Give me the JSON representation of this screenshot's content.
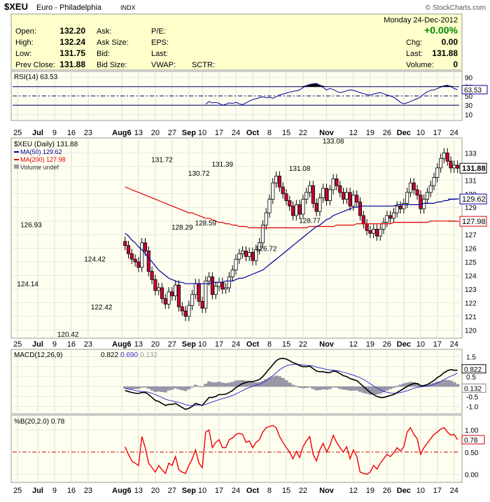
{
  "header": {
    "symbol": "$XEU",
    "name": "Euro - Philadelphia",
    "exchange": "INDX",
    "source": "© StockCharts.com",
    "date": "Monday 24-Dec-2012",
    "change_pct": "+0.00%"
  },
  "quote": {
    "col1": [
      {
        "label": "Open:",
        "value": "132.20"
      },
      {
        "label": "High:",
        "value": "132.24"
      },
      {
        "label": "Low:",
        "value": "131.75"
      },
      {
        "label": "Prev Close:",
        "value": "131.88"
      }
    ],
    "col2": [
      "Ask:",
      "Ask Size:",
      "Bid:",
      "Bid Size:"
    ],
    "col3": [
      "P/E:",
      "EPS:",
      "Last:",
      "VWAP:"
    ],
    "sctr": "SCTR:",
    "col4": [
      {
        "label": "Chg:",
        "value": "0.00"
      },
      {
        "label": "Last:",
        "value": "131.88"
      },
      {
        "label": "Volume:",
        "value": "0"
      }
    ]
  },
  "colors": {
    "panel_bg": "#fffff0",
    "header_bg": "#ffffcc",
    "up_candle": "#ffffff",
    "down_candle": "#cc0033",
    "ma50": "#000099",
    "ma200": "#dd0000",
    "rsi": "#000099",
    "macd": "#000000",
    "signal": "#3333cc",
    "histogram": "#9999aa",
    "pctb": "#ee0000"
  },
  "chart_data": [
    {
      "type": "line",
      "name": "rsi",
      "legend": "RSI(14) 63.53",
      "last_label": "63.53",
      "y_ticks": [
        "90",
        "70",
        "50",
        "30",
        "10"
      ],
      "ylim": [
        0,
        100
      ],
      "levels": [
        70,
        50,
        30
      ],
      "values": [
        32,
        38,
        35,
        36,
        34,
        30,
        32,
        35,
        34,
        36,
        33,
        31,
        35,
        39,
        42,
        44,
        46,
        48,
        46,
        47,
        45,
        48,
        52,
        54,
        56,
        58,
        60,
        61,
        63,
        68,
        72,
        75,
        76,
        77,
        73,
        68,
        63,
        66,
        64,
        60,
        57,
        59,
        61,
        63,
        62,
        60,
        57,
        55,
        53,
        52,
        54,
        56,
        57,
        55,
        52,
        50,
        47,
        42,
        36,
        33,
        35,
        38,
        41,
        44,
        48,
        54,
        59,
        62,
        63,
        66,
        69,
        72,
        73,
        70,
        66,
        63.53
      ]
    },
    {
      "type": "candlestick",
      "name": "price",
      "legend": [
        "$XEU (Daily) 131.88",
        "MA(50) 129.62",
        "MA(200) 127.98",
        "Volume undef"
      ],
      "y_ticks": [
        "133",
        "132",
        "131",
        "130",
        "129",
        "128",
        "127",
        "126",
        "125",
        "124",
        "123",
        "122",
        "121",
        "120"
      ],
      "ylim": [
        119.5,
        134
      ],
      "price_tags": [
        {
          "label": "131.88",
          "value": 131.88,
          "kind": "price"
        },
        {
          "label": "129.62",
          "value": 129.62,
          "kind": "ma50"
        },
        {
          "label": "127.98",
          "value": 127.98,
          "kind": "ma200"
        }
      ],
      "annotations": [
        {
          "label": "126.93",
          "i": 5,
          "value": 126.93,
          "pos": "above"
        },
        {
          "label": "124.14",
          "i": 4,
          "value": 124.14,
          "pos": "below"
        },
        {
          "label": "120.42",
          "i": 16,
          "value": 120.42,
          "pos": "below"
        },
        {
          "label": "124.42",
          "i": 24,
          "value": 124.42,
          "pos": "above"
        },
        {
          "label": "122.42",
          "i": 26,
          "value": 122.42,
          "pos": "below"
        },
        {
          "label": "131.72",
          "i": 44,
          "value": 131.72,
          "pos": "above"
        },
        {
          "label": "128.29",
          "i": 50,
          "value": 128.29,
          "pos": "below"
        },
        {
          "label": "130.72",
          "i": 55,
          "value": 130.72,
          "pos": "above"
        },
        {
          "label": "128.59",
          "i": 57,
          "value": 128.59,
          "pos": "below"
        },
        {
          "label": "131.39",
          "i": 62,
          "value": 131.39,
          "pos": "above"
        },
        {
          "label": "126.72",
          "i": 75,
          "value": 126.72,
          "pos": "below"
        },
        {
          "label": "131.08",
          "i": 85,
          "value": 131.08,
          "pos": "above"
        },
        {
          "label": "128.77",
          "i": 88,
          "value": 128.77,
          "pos": "below"
        },
        {
          "label": "133.08",
          "i": 95,
          "value": 133.08,
          "pos": "above"
        }
      ],
      "close": [
        126.2,
        125.6,
        125.2,
        125.0,
        124.6,
        126.4,
        125.8,
        124.3,
        123.7,
        122.9,
        123.1,
        122.3,
        121.9,
        122.8,
        122.5,
        123.3,
        121.7,
        121.4,
        121.0,
        121.8,
        122.6,
        123.4,
        122.1,
        121.6,
        123.6,
        123.9,
        122.6,
        123.2,
        123.5,
        123.0,
        123.1,
        123.9,
        124.4,
        125.2,
        125.6,
        125.8,
        125.4,
        125.7,
        125.1,
        125.9,
        126.4,
        127.7,
        128.6,
        129.6,
        130.8,
        131.3,
        130.5,
        130.0,
        129.5,
        129.1,
        128.4,
        129.2,
        128.5,
        129.6,
        130.1,
        130.6,
        129.3,
        128.7,
        129.7,
        130.4,
        129.5,
        130.3,
        131.1,
        130.6,
        130.1,
        129.6,
        130.1,
        129.1,
        129.9,
        129.4,
        128.4,
        127.8,
        127.3,
        127.1,
        127.4,
        126.9,
        127.4,
        127.9,
        128.4,
        128.2,
        128.6,
        129.1,
        128.9,
        129.3,
        130.1,
        130.8,
        130.3,
        129.9,
        128.9,
        129.6,
        130.1,
        130.6,
        131.2,
        131.9,
        132.6,
        133.0,
        132.4,
        131.9,
        132.1,
        131.88
      ],
      "ma50": [
        127.1,
        126.9,
        126.6,
        126.4,
        126.1,
        125.9,
        125.6,
        125.3,
        125.0,
        124.7,
        124.4,
        124.2,
        124.0,
        123.8,
        123.7,
        123.6,
        123.5,
        123.5,
        123.4,
        123.4,
        123.4,
        123.4,
        123.4,
        123.4,
        123.4,
        123.4,
        123.5,
        123.5,
        123.5,
        123.5,
        123.6,
        123.6,
        123.6,
        123.7,
        123.8,
        123.8,
        123.9,
        124.0,
        124.1,
        124.2,
        124.3,
        124.4,
        124.6,
        124.8,
        125.0,
        125.2,
        125.4,
        125.6,
        125.8,
        126.0,
        126.2,
        126.4,
        126.6,
        126.8,
        127.0,
        127.2,
        127.4,
        127.6,
        127.7,
        127.9,
        128.1,
        128.2,
        128.4,
        128.5,
        128.6,
        128.7,
        128.8,
        128.9,
        129.0,
        129.0,
        129.1,
        129.1,
        129.1,
        129.1,
        129.1,
        129.1,
        129.1,
        129.1,
        129.1,
        129.1,
        129.1,
        129.2,
        129.2,
        129.2,
        129.2,
        129.2,
        129.2,
        129.2,
        129.2,
        129.3,
        129.3,
        129.3,
        129.3,
        129.4,
        129.4,
        129.5,
        129.5,
        129.6,
        129.6,
        129.62
      ],
      "ma200": [
        130.5,
        130.4,
        130.3,
        130.2,
        130.1,
        130.0,
        129.9,
        129.8,
        129.7,
        129.6,
        129.5,
        129.4,
        129.3,
        129.2,
        129.1,
        129.0,
        128.9,
        128.8,
        128.7,
        128.6,
        128.6,
        128.5,
        128.4,
        128.3,
        128.2,
        128.2,
        128.1,
        128.0,
        127.9,
        127.9,
        127.8,
        127.8,
        127.7,
        127.7,
        127.6,
        127.6,
        127.6,
        127.5,
        127.5,
        127.5,
        127.5,
        127.5,
        127.5,
        127.5,
        127.5,
        127.5,
        127.5,
        127.5,
        127.5,
        127.5,
        127.5,
        127.5,
        127.5,
        127.5,
        127.5,
        127.6,
        127.6,
        127.6,
        127.6,
        127.6,
        127.6,
        127.6,
        127.6,
        127.7,
        127.7,
        127.7,
        127.7,
        127.7,
        127.7,
        127.8,
        127.8,
        127.8,
        127.8,
        127.8,
        127.8,
        127.8,
        127.8,
        127.8,
        127.8,
        127.8,
        127.9,
        127.9,
        127.9,
        127.9,
        127.9,
        127.9,
        127.9,
        127.9,
        127.9,
        127.9,
        127.9,
        128.0,
        128.0,
        128.0,
        128.0,
        128.0,
        128.0,
        128.0,
        128.0,
        127.98
      ]
    },
    {
      "type": "line",
      "name": "macd",
      "legend": {
        "label": "MACD(12,26,9)",
        "macd": "0.822",
        "signal": "0.690",
        "hist": "0.132"
      },
      "y_ticks": [
        "1.5",
        "1.0",
        "0.5",
        "0.0",
        "-0.5",
        "-1.0"
      ],
      "ylim": [
        -1.3,
        1.8
      ],
      "price_tags": [
        {
          "label": "0.822",
          "value": 0.822,
          "kind": "macd"
        },
        {
          "label": "0.132",
          "value": 0.132,
          "kind": "hist"
        }
      ],
      "macd": [
        -0.2,
        -0.25,
        -0.3,
        -0.33,
        -0.35,
        -0.3,
        -0.3,
        -0.4,
        -0.55,
        -0.7,
        -0.75,
        -0.85,
        -0.95,
        -0.9,
        -0.9,
        -0.85,
        -0.95,
        -1.05,
        -1.15,
        -1.1,
        -1.0,
        -0.85,
        -0.9,
        -0.95,
        -0.75,
        -0.55,
        -0.55,
        -0.5,
        -0.4,
        -0.4,
        -0.38,
        -0.3,
        -0.2,
        -0.05,
        0.05,
        0.15,
        0.2,
        0.25,
        0.25,
        0.3,
        0.35,
        0.5,
        0.7,
        0.9,
        1.1,
        1.3,
        1.4,
        1.42,
        1.38,
        1.3,
        1.2,
        1.15,
        1.05,
        1.0,
        1.0,
        1.02,
        0.9,
        0.78,
        0.75,
        0.75,
        0.7,
        0.7,
        0.78,
        0.75,
        0.65,
        0.55,
        0.5,
        0.4,
        0.35,
        0.3,
        0.15,
        0.0,
        -0.15,
        -0.3,
        -0.4,
        -0.5,
        -0.55,
        -0.55,
        -0.5,
        -0.45,
        -0.4,
        -0.3,
        -0.2,
        -0.1,
        0.0,
        0.1,
        0.15,
        0.15,
        0.05,
        0.05,
        0.1,
        0.2,
        0.3,
        0.45,
        0.55,
        0.7,
        0.8,
        0.85,
        0.82,
        0.822
      ],
      "signal": [
        -0.1,
        -0.13,
        -0.16,
        -0.2,
        -0.23,
        -0.25,
        -0.26,
        -0.29,
        -0.34,
        -0.41,
        -0.48,
        -0.55,
        -0.63,
        -0.69,
        -0.73,
        -0.76,
        -0.8,
        -0.85,
        -0.91,
        -0.95,
        -0.96,
        -0.94,
        -0.93,
        -0.93,
        -0.9,
        -0.83,
        -0.78,
        -0.72,
        -0.66,
        -0.61,
        -0.56,
        -0.51,
        -0.45,
        -0.37,
        -0.29,
        -0.2,
        -0.12,
        -0.05,
        0.01,
        0.07,
        0.12,
        0.2,
        0.3,
        0.42,
        0.55,
        0.7,
        0.84,
        0.95,
        1.04,
        1.09,
        1.11,
        1.12,
        1.11,
        1.09,
        1.07,
        1.06,
        1.03,
        0.98,
        0.94,
        0.9,
        0.86,
        0.83,
        0.82,
        0.8,
        0.77,
        0.72,
        0.68,
        0.62,
        0.57,
        0.51,
        0.44,
        0.35,
        0.25,
        0.14,
        0.03,
        -0.07,
        -0.16,
        -0.24,
        -0.29,
        -0.32,
        -0.34,
        -0.33,
        -0.3,
        -0.26,
        -0.21,
        -0.15,
        -0.09,
        -0.04,
        -0.02,
        0.0,
        0.02,
        0.06,
        0.11,
        0.18,
        0.26,
        0.35,
        0.44,
        0.52,
        0.58,
        0.69
      ]
    },
    {
      "type": "line",
      "name": "pctb",
      "legend": "%B(20,2.0) 0.78",
      "last_label": "0.78",
      "y_ticks": [
        "1.00",
        "0.50",
        "0.00"
      ],
      "ylim": [
        -0.15,
        1.3
      ],
      "levels": [
        1.0,
        0.5,
        0.0
      ],
      "values": [
        0.62,
        0.45,
        0.3,
        0.25,
        0.2,
        0.85,
        0.6,
        0.25,
        0.15,
        0.05,
        0.2,
        0.1,
        0.02,
        0.25,
        0.2,
        0.4,
        0.1,
        0.05,
        0.02,
        0.2,
        0.35,
        0.55,
        0.25,
        0.15,
        0.95,
        1.0,
        0.6,
        0.72,
        0.78,
        0.6,
        0.6,
        0.78,
        0.82,
        0.9,
        0.92,
        0.9,
        0.72,
        0.75,
        0.6,
        0.72,
        0.78,
        0.95,
        1.05,
        1.08,
        1.1,
        1.05,
        0.85,
        0.72,
        0.6,
        0.5,
        0.35,
        0.52,
        0.38,
        0.62,
        0.75,
        0.85,
        0.45,
        0.3,
        0.55,
        0.7,
        0.5,
        0.65,
        0.88,
        0.72,
        0.6,
        0.5,
        0.62,
        0.35,
        0.55,
        0.4,
        0.05,
        0.02,
        0.0,
        0.05,
        0.2,
        0.12,
        0.25,
        0.35,
        0.45,
        0.4,
        0.48,
        0.6,
        0.52,
        0.62,
        0.95,
        1.05,
        0.9,
        0.8,
        0.45,
        0.6,
        0.7,
        0.8,
        0.9,
        0.95,
        1.02,
        1.05,
        0.95,
        0.88,
        0.9,
        0.78
      ]
    }
  ],
  "x_axis": {
    "labels": [
      {
        "text": "25",
        "i": 1,
        "bold": false
      },
      {
        "text": "Jul",
        "i": 7,
        "bold": true
      },
      {
        "text": "9",
        "i": 12,
        "bold": false
      },
      {
        "text": "16",
        "i": 17,
        "bold": false
      },
      {
        "text": "23",
        "i": 22,
        "bold": false
      },
      {
        "text": "Aug6",
        "i": 32,
        "bold": true
      },
      {
        "text": "13",
        "i": 37,
        "bold": false
      },
      {
        "text": "20",
        "i": 42,
        "bold": false
      },
      {
        "text": "27",
        "i": 47,
        "bold": false
      },
      {
        "text": "Sep",
        "i": 52,
        "bold": true
      },
      {
        "text": "10",
        "i": 56,
        "bold": false
      },
      {
        "text": "17",
        "i": 61,
        "bold": false
      },
      {
        "text": "24",
        "i": 66,
        "bold": false
      },
      {
        "text": "Oct",
        "i": 71,
        "bold": true
      },
      {
        "text": "8",
        "i": 76,
        "bold": false
      },
      {
        "text": "15",
        "i": 81,
        "bold": false
      },
      {
        "text": "22",
        "i": 86,
        "bold": false
      },
      {
        "text": "Nov",
        "i": 93,
        "bold": true
      },
      {
        "text": "12",
        "i": 101,
        "bold": false
      },
      {
        "text": "19",
        "i": 106,
        "bold": false
      },
      {
        "text": "26",
        "i": 111,
        "bold": false
      },
      {
        "text": "Dec",
        "i": 116,
        "bold": true
      },
      {
        "text": "10",
        "i": 121,
        "bold": false
      },
      {
        "text": "17",
        "i": 126,
        "bold": false
      },
      {
        "text": "24",
        "i": 131,
        "bold": false
      }
    ],
    "days": 133
  }
}
